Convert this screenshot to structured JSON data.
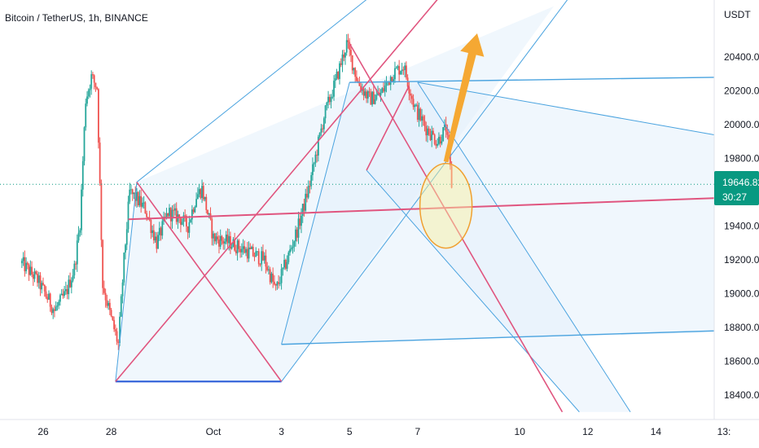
{
  "header": {
    "title": "Bitcoin / TetherUS, 1h, BINANCE"
  },
  "colors": {
    "up": "#26a69a",
    "down": "#ef5350",
    "fork_blue": "#4aa3df",
    "fork_pink": "#e0557f",
    "base_blue": "#2255d6",
    "arrow": "#f5a833",
    "circle_stroke": "#f0a030",
    "circle_fill": "#fff59d",
    "price_badge": "#089981",
    "fill_light": "#e3f0fb"
  },
  "chart_data": {
    "type": "candlestick",
    "title": "Bitcoin / TetherUS, 1h, BINANCE",
    "y_unit": "USDT",
    "ylim": [
      18300,
      20700
    ],
    "y_ticks": [
      "18400.00",
      "18600.00",
      "18800.00",
      "19000.00",
      "19200.00",
      "19400.00",
      "19600.00",
      "19800.00",
      "20000.00",
      "20200.00",
      "20400.00"
    ],
    "x_ticks": [
      "26",
      "28",
      "Oct",
      "3",
      "5",
      "7",
      "10",
      "12",
      "14",
      "13:"
    ],
    "last_price": "19646.82",
    "countdown": "30:27",
    "price_path": [
      [
        "Sep 25 09:00",
        19180
      ],
      [
        "Sep 25 20:00",
        19080
      ],
      [
        "Sep 26 08:00",
        18900
      ],
      [
        "Sep 26 16:00",
        19000
      ],
      [
        "Sep 26 22:00",
        19150
      ],
      [
        "Sep 27 02:00",
        19420
      ],
      [
        "Sep 27 06:00",
        20150
      ],
      [
        "Sep 27 10:00",
        20280
      ],
      [
        "Sep 27 14:00",
        20220
      ],
      [
        "Sep 27 18:00",
        19050
      ],
      [
        "Sep 28 00:00",
        18850
      ],
      [
        "Sep 28 05:00",
        18700
      ],
      [
        "Sep 28 09:00",
        19200
      ],
      [
        "Sep 28 13:00",
        19600
      ],
      [
        "Sep 28 18:00",
        19560
      ],
      [
        "Sep 29 00:00",
        19500
      ],
      [
        "Sep 29 08:00",
        19300
      ],
      [
        "Sep 29 16:00",
        19480
      ],
      [
        "Sep 30 00:00",
        19450
      ],
      [
        "Sep 30 06:00",
        19400
      ],
      [
        "Sep 30 12:00",
        19580
      ],
      [
        "Sep 30 16:00",
        19620
      ],
      [
        "Oct 1 00:00",
        19330
      ],
      [
        "Oct 1 12:00",
        19300
      ],
      [
        "Oct 2 00:00",
        19250
      ],
      [
        "Oct 2 12:00",
        19200
      ],
      [
        "Oct 2 20:00",
        19020
      ],
      [
        "Oct 3 04:00",
        19200
      ],
      [
        "Oct 3 12:00",
        19400
      ],
      [
        "Oct 3 20:00",
        19650
      ],
      [
        "Oct 4 06:00",
        20050
      ],
      [
        "Oct 4 14:00",
        20250
      ],
      [
        "Oct 4 22:00",
        20480
      ],
      [
        "Oct 5 06:00",
        20250
      ],
      [
        "Oct 5 14:00",
        20150
      ],
      [
        "Oct 5 22:00",
        20180
      ],
      [
        "Oct 6 06:00",
        20300
      ],
      [
        "Oct 6 14:00",
        20350
      ],
      [
        "Oct 6 22:00",
        20100
      ],
      [
        "Oct 7 06:00",
        19980
      ],
      [
        "Oct 7 14:00",
        19900
      ],
      [
        "Oct 7 20:00",
        19980
      ],
      [
        "Oct 8 00:00",
        19646.82
      ]
    ],
    "overlays": {
      "blue_pitchfork": {
        "anchor_low": [
          "Sep 28 03:00",
          18480
        ],
        "base_right": [
          "Oct 3 00:00",
          18480
        ],
        "anchor_mid": [
          "Sep 28 18:00",
          19660
        ],
        "median_direction_to": [
          "Oct 7 20:00",
          19520
        ],
        "parallel_top_from": [
          "Oct 5 00:00",
          20250
        ],
        "parallel_bottom_from": [
          "Oct 3 00:00",
          18700
        ]
      },
      "pink_pitchfork": {
        "from": [
          "Sep 28 03:00",
          18480
        ],
        "to": [
          "Oct 7 20:00",
          19520
        ]
      },
      "horizontal_pink": {
        "from": [
          "Sep 28 12:00",
          19440
        ],
        "to": [
          "Oct 14 00:00",
          19560
        ]
      },
      "target_arrow": {
        "from": [
          "Oct 7 20:00",
          19780
        ],
        "to": [
          "Oct 8 18:00",
          20540
        ]
      }
    }
  }
}
